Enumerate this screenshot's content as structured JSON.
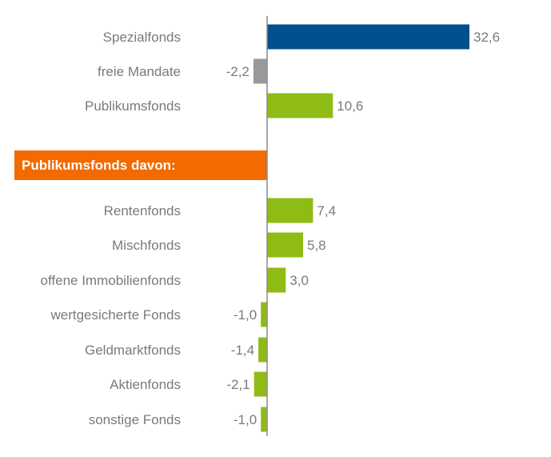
{
  "chart_data": {
    "type": "bar",
    "orientation": "horizontal",
    "title": "",
    "xlabel": "",
    "ylabel": "",
    "xlim": [
      -2.5,
      33
    ],
    "grid": false,
    "section_header": "Publikumsfonds davon:",
    "colors": {
      "Spezialfonds": "#004f8f",
      "freie Mandate": "#999999",
      "Publikumsfonds": "#8fbc14",
      "header_bg": "#f36a00"
    },
    "top_group": [
      {
        "name": "Spezialfonds",
        "value": 32.6,
        "label": "32,6",
        "color": "#004f8f"
      },
      {
        "name": "freie Mandate",
        "value": -2.2,
        "label": "-2,2",
        "color": "#999999"
      },
      {
        "name": "Publikumsfonds",
        "value": 10.6,
        "label": "10,6",
        "color": "#8fbc14"
      }
    ],
    "sub_group": [
      {
        "name": "Rentenfonds",
        "value": 7.4,
        "label": "7,4",
        "color": "#8fbc14"
      },
      {
        "name": "Mischfonds",
        "value": 5.8,
        "label": "5,8",
        "color": "#8fbc14"
      },
      {
        "name": "offene Immobilienfonds",
        "value": 3.0,
        "label": "3,0",
        "color": "#8fbc14"
      },
      {
        "name": "wertgesicherte Fonds",
        "value": -1.0,
        "label": "-1,0",
        "color": "#8fbc14"
      },
      {
        "name": "Geldmarktfonds",
        "value": -1.4,
        "label": "-1,4",
        "color": "#8fbc14"
      },
      {
        "name": "Aktienfonds",
        "value": -2.1,
        "label": "-2,1",
        "color": "#8fbc14"
      },
      {
        "name": "sonstige Fonds",
        "value": -1.0,
        "label": "-1,0",
        "color": "#8fbc14"
      }
    ]
  }
}
